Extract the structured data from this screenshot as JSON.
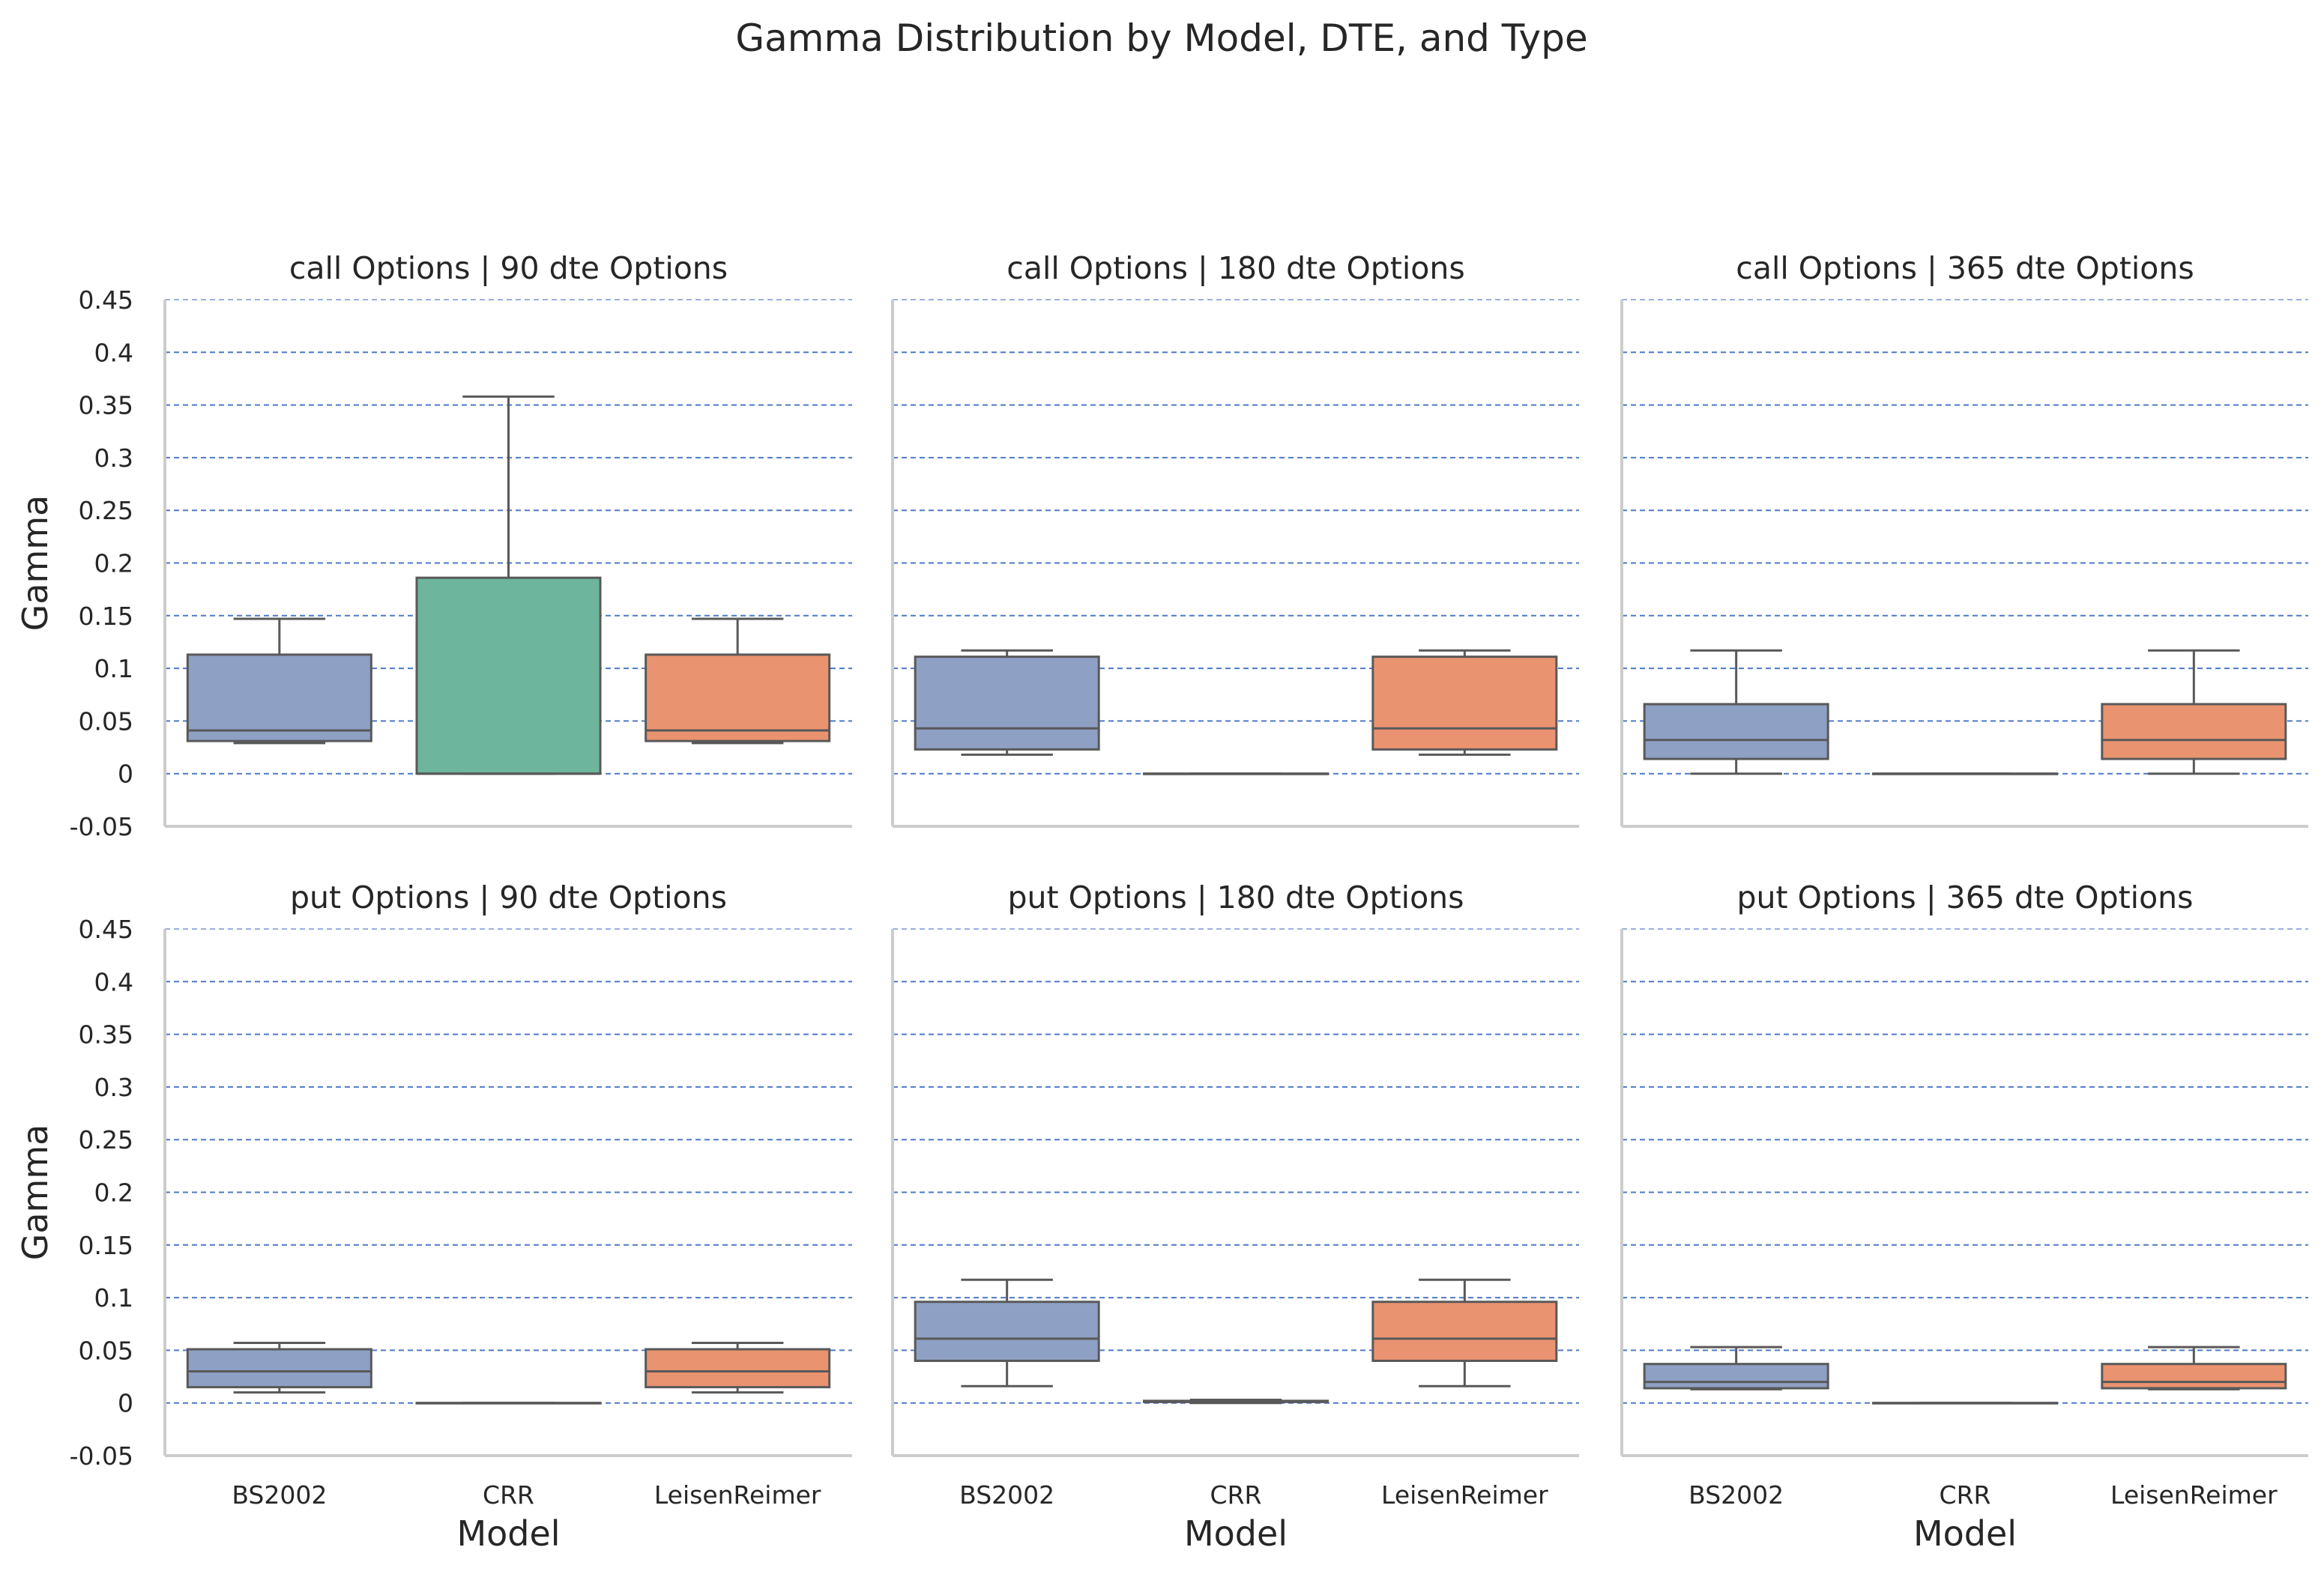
{
  "chart_data": {
    "type": "box",
    "title": "Gamma Distribution by Model, DTE, and Type",
    "ylabel": "Gamma",
    "xlabel": "Model",
    "ylim": [
      -0.05,
      0.45
    ],
    "yticks": [
      -0.05,
      0,
      0.05,
      0.1,
      0.15,
      0.2,
      0.25,
      0.3,
      0.35,
      0.4,
      0.45
    ],
    "ytick_labels": [
      "-0.05",
      "0",
      "0.05",
      "0.1",
      "0.15",
      "0.2",
      "0.25",
      "0.3",
      "0.35",
      "0.4",
      "0.45"
    ],
    "categories": [
      "BS2002",
      "CRR",
      "LeisenReimer"
    ],
    "colors": {
      "BS2002": "#8fa0c5",
      "CRR": "#6db59d",
      "LeisenReimer": "#ea9370"
    },
    "grid": {
      "axis": "y",
      "style": "dashed",
      "color": "#4472c4"
    },
    "panels": [
      {
        "title": "call Options | 90 dte Options",
        "boxes": [
          {
            "category": "BS2002",
            "whisker_low": 0.029,
            "q1": 0.031,
            "median": 0.041,
            "q3": 0.113,
            "whisker_high": 0.147
          },
          {
            "category": "CRR",
            "whisker_low": 0.0,
            "q1": 0.0,
            "median": 0.0,
            "q3": 0.186,
            "whisker_high": 0.358
          },
          {
            "category": "LeisenReimer",
            "whisker_low": 0.029,
            "q1": 0.031,
            "median": 0.041,
            "q3": 0.113,
            "whisker_high": 0.147
          }
        ]
      },
      {
        "title": "call Options | 180 dte Options",
        "boxes": [
          {
            "category": "BS2002",
            "whisker_low": 0.018,
            "q1": 0.023,
            "median": 0.043,
            "q3": 0.111,
            "whisker_high": 0.117
          },
          {
            "category": "CRR",
            "whisker_low": 0.0,
            "q1": 0.0,
            "median": 0.0,
            "q3": 0.0,
            "whisker_high": 0.0
          },
          {
            "category": "LeisenReimer",
            "whisker_low": 0.018,
            "q1": 0.023,
            "median": 0.043,
            "q3": 0.111,
            "whisker_high": 0.117
          }
        ]
      },
      {
        "title": "call Options | 365 dte Options",
        "boxes": [
          {
            "category": "BS2002",
            "whisker_low": 0.0,
            "q1": 0.014,
            "median": 0.032,
            "q3": 0.066,
            "whisker_high": 0.117
          },
          {
            "category": "CRR",
            "whisker_low": 0.0,
            "q1": 0.0,
            "median": 0.0,
            "q3": 0.0,
            "whisker_high": 0.0
          },
          {
            "category": "LeisenReimer",
            "whisker_low": 0.0,
            "q1": 0.014,
            "median": 0.032,
            "q3": 0.066,
            "whisker_high": 0.117
          }
        ]
      },
      {
        "title": "put Options | 90 dte Options",
        "boxes": [
          {
            "category": "BS2002",
            "whisker_low": 0.01,
            "q1": 0.015,
            "median": 0.03,
            "q3": 0.051,
            "whisker_high": 0.057
          },
          {
            "category": "CRR",
            "whisker_low": 0.0,
            "q1": 0.0,
            "median": 0.0,
            "q3": 0.0,
            "whisker_high": 0.0
          },
          {
            "category": "LeisenReimer",
            "whisker_low": 0.01,
            "q1": 0.015,
            "median": 0.03,
            "q3": 0.051,
            "whisker_high": 0.057
          }
        ]
      },
      {
        "title": "put Options | 180 dte Options",
        "boxes": [
          {
            "category": "BS2002",
            "whisker_low": 0.016,
            "q1": 0.04,
            "median": 0.061,
            "q3": 0.096,
            "whisker_high": 0.117
          },
          {
            "category": "CRR",
            "whisker_low": 0.0,
            "q1": 0.001,
            "median": 0.001,
            "q3": 0.002,
            "whisker_high": 0.003
          },
          {
            "category": "LeisenReimer",
            "whisker_low": 0.016,
            "q1": 0.04,
            "median": 0.061,
            "q3": 0.096,
            "whisker_high": 0.117
          }
        ]
      },
      {
        "title": "put Options | 365 dte Options",
        "boxes": [
          {
            "category": "BS2002",
            "whisker_low": 0.013,
            "q1": 0.014,
            "median": 0.02,
            "q3": 0.037,
            "whisker_high": 0.053
          },
          {
            "category": "CRR",
            "whisker_low": 0.0,
            "q1": 0.0,
            "median": 0.0,
            "q3": 0.0,
            "whisker_high": 0.0
          },
          {
            "category": "LeisenReimer",
            "whisker_low": 0.013,
            "q1": 0.014,
            "median": 0.02,
            "q3": 0.037,
            "whisker_high": 0.053
          }
        ]
      }
    ]
  }
}
